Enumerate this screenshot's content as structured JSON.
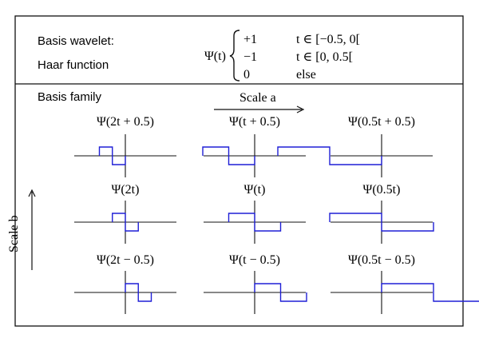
{
  "header": {
    "basis_wavelet_label": "Basis wavelet:",
    "haar_label": "Haar function",
    "psi_lhs": "Ψ(t)",
    "cases": [
      {
        "value": "+1",
        "condition": "t ∈ [−0.5, 0["
      },
      {
        "value": "−1",
        "condition": "t ∈ [0, 0.5["
      },
      {
        "value": "0",
        "condition": "else"
      }
    ]
  },
  "family": {
    "label": "Basis family",
    "scale_a_label": "Scale a",
    "scale_b_label": "Scale b",
    "plots": [
      {
        "title": "Ψ(2t + 0.5)",
        "a": 2,
        "b": 0.5
      },
      {
        "title": "Ψ(t + 0.5)",
        "a": 1,
        "b": 0.5
      },
      {
        "title": "Ψ(0.5t + 0.5)",
        "a": 0.5,
        "b": 0.5
      },
      {
        "title": "Ψ(2t)",
        "a": 2,
        "b": 0
      },
      {
        "title": "Ψ(t)",
        "a": 1,
        "b": 0
      },
      {
        "title": "Ψ(0.5t)",
        "a": 0.5,
        "b": 0
      },
      {
        "title": "Ψ(2t − 0.5)",
        "a": 2,
        "b": -0.5
      },
      {
        "title": "Ψ(t − 0.5)",
        "a": 1,
        "b": -0.5
      },
      {
        "title": "Ψ(0.5t − 0.5)",
        "a": 0.5,
        "b": -0.5
      }
    ]
  },
  "colors": {
    "curve": "#1f1fd6",
    "frame": "#111111"
  }
}
